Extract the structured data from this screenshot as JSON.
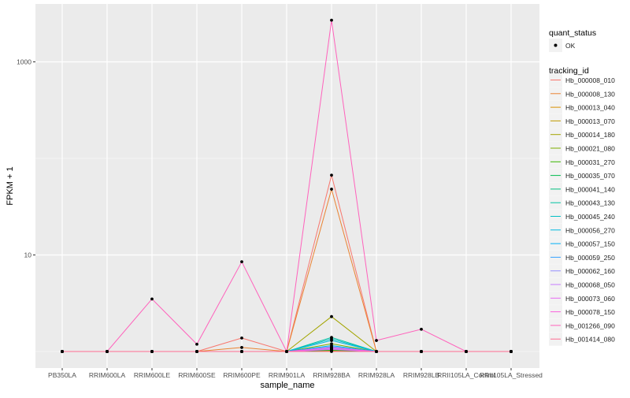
{
  "chart_data": {
    "type": "line",
    "title": "",
    "xlabel": "sample_name",
    "ylabel": "FPKM + 1",
    "yscale": "log10",
    "ylim": [
      0.68,
      4100
    ],
    "yticks": [
      10,
      1000
    ],
    "ytick_labels": [
      "10",
      "1000"
    ],
    "y_minor_grid": [
      1,
      100
    ],
    "grid": true,
    "legend_position": "right",
    "categories": [
      "PB350LA",
      "RRIM600LA",
      "RRIM600LE",
      "RRIM600SE",
      "RRIM600PE",
      "RRIM901LA",
      "RRIM928BA",
      "RRIM928LA",
      "RRIM928LB",
      "RRII105LA_Control",
      "RRII105LA_Stressed"
    ],
    "point_legend": {
      "title": "quant_status",
      "entries": [
        "OK"
      ]
    },
    "line_legend_title": "tracking_id",
    "series": [
      {
        "name": "Hb_000008_010",
        "color": "#F8766D",
        "values": [
          1,
          1,
          1,
          1,
          1.38,
          1,
          67,
          1,
          1,
          1,
          1
        ]
      },
      {
        "name": "Hb_000008_130",
        "color": "#EA8331",
        "values": [
          1,
          1,
          1,
          1,
          1.1,
          1,
          48,
          1,
          1,
          1,
          1
        ]
      },
      {
        "name": "Hb_000013_040",
        "color": "#D89000",
        "values": [
          1,
          1,
          1,
          1,
          1,
          1,
          1.02,
          1,
          1,
          1,
          1
        ]
      },
      {
        "name": "Hb_000013_070",
        "color": "#C09B00",
        "values": [
          1,
          1,
          1,
          1,
          1,
          1,
          1.05,
          1,
          1,
          1,
          1
        ]
      },
      {
        "name": "Hb_000014_180",
        "color": "#A3A500",
        "values": [
          1,
          1,
          1,
          1,
          1,
          1,
          2.3,
          1,
          1,
          1,
          1
        ]
      },
      {
        "name": "Hb_000021_080",
        "color": "#7CAE00",
        "values": [
          1,
          1,
          1,
          1,
          1,
          1,
          1.2,
          1,
          1,
          1,
          1
        ]
      },
      {
        "name": "Hb_000031_270",
        "color": "#39B600",
        "values": [
          1,
          1,
          1,
          1,
          1,
          1,
          1.03,
          1,
          1,
          1,
          1
        ]
      },
      {
        "name": "Hb_000035_070",
        "color": "#00BB4E",
        "values": [
          1,
          1,
          1,
          1,
          1,
          1,
          1.04,
          1,
          1,
          1,
          1
        ]
      },
      {
        "name": "Hb_000041_140",
        "color": "#00BF7D",
        "values": [
          1,
          1,
          1,
          1,
          1,
          1,
          1.06,
          1,
          1,
          1,
          1
        ]
      },
      {
        "name": "Hb_000043_130",
        "color": "#00C1A3",
        "values": [
          1,
          1,
          1,
          1,
          1,
          1,
          1.4,
          1,
          1,
          1,
          1
        ]
      },
      {
        "name": "Hb_000045_240",
        "color": "#00BFC4",
        "values": [
          1,
          1,
          1,
          1,
          1,
          1,
          1.35,
          1,
          1,
          1,
          1
        ]
      },
      {
        "name": "Hb_000056_270",
        "color": "#00BAE0",
        "values": [
          1,
          1,
          1,
          1,
          1,
          1,
          1.3,
          1,
          1,
          1,
          1
        ]
      },
      {
        "name": "Hb_000057_150",
        "color": "#00B0F6",
        "values": [
          1,
          1,
          1,
          1,
          1,
          1,
          1.15,
          1,
          1,
          1,
          1
        ]
      },
      {
        "name": "Hb_000059_250",
        "color": "#35A2FF",
        "values": [
          1,
          1,
          1,
          1,
          1,
          1,
          1.12,
          1,
          1,
          1,
          1
        ]
      },
      {
        "name": "Hb_000062_160",
        "color": "#9590FF",
        "values": [
          1,
          1,
          1,
          1,
          1,
          1,
          1.08,
          1,
          1,
          1,
          1
        ]
      },
      {
        "name": "Hb_000068_050",
        "color": "#C77CFF",
        "values": [
          1,
          1,
          1,
          1,
          1,
          1,
          1.07,
          1,
          1,
          1,
          1
        ]
      },
      {
        "name": "Hb_000073_060",
        "color": "#E76BF3",
        "values": [
          1,
          1,
          1,
          1,
          1,
          1,
          1.05,
          1,
          1,
          1,
          1
        ]
      },
      {
        "name": "Hb_000078_150",
        "color": "#FA62DB",
        "values": [
          1,
          1,
          1,
          1,
          1,
          1,
          1.1,
          1,
          1,
          1,
          1
        ]
      },
      {
        "name": "Hb_001266_090",
        "color": "#FF62BC",
        "values": [
          1,
          1,
          3.5,
          1.19,
          8.5,
          1,
          2700,
          1.3,
          1.7,
          1,
          1
        ]
      },
      {
        "name": "Hb_001414_080",
        "color": "#FF6C91",
        "values": [
          1,
          1,
          1,
          1,
          1,
          1,
          1,
          1,
          1,
          1,
          1
        ]
      }
    ]
  }
}
